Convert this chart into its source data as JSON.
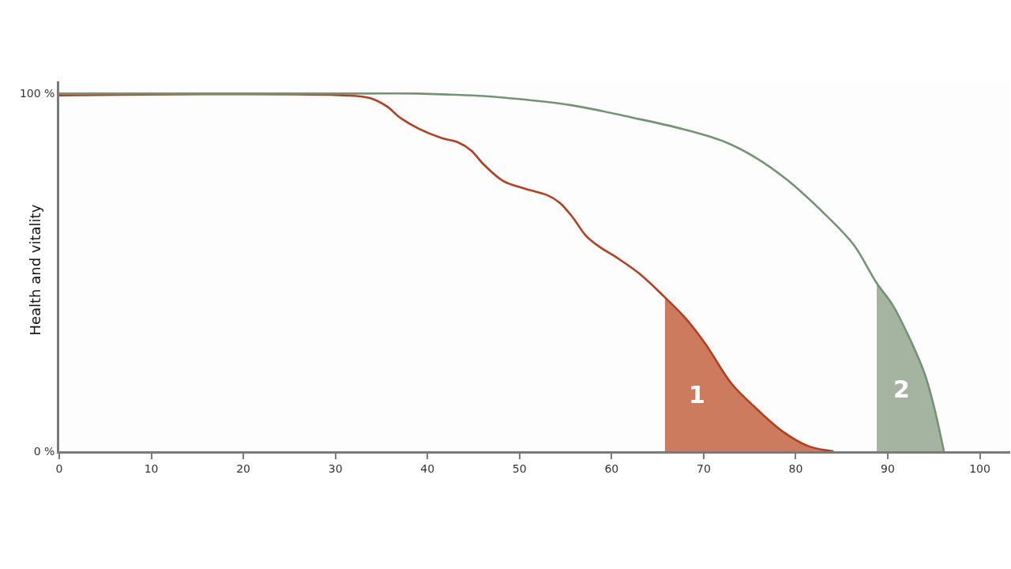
{
  "chart_data": {
    "type": "line",
    "ylabel": "Health and vitality",
    "xlim": [
      0,
      103.3
    ],
    "xticks": [
      0,
      10,
      20,
      30,
      40,
      50,
      60,
      70,
      80,
      90,
      100
    ],
    "ylim": [
      0,
      103.4
    ],
    "yticks": [
      {
        "value": 0,
        "label": "0 %"
      },
      {
        "value": 100,
        "label": "100 %"
      }
    ],
    "series": [
      {
        "type": "area",
        "color": "#cc7b5f",
        "x": [
          65.8,
          68.1,
          70.2,
          73.0,
          75.7,
          78.6,
          81.4,
          83.5,
          84.1
        ],
        "values": [
          43,
          37,
          30,
          19,
          12,
          5.5,
          1.4,
          0.2,
          0
        ]
      },
      {
        "type": "area",
        "color": "#a5b4a0",
        "x": [
          88.8,
          90.5,
          92.2,
          94.0,
          95.0,
          96.1
        ],
        "values": [
          47,
          41,
          32.5,
          21.7,
          12.7,
          0
        ]
      },
      {
        "color": "#b93d1c",
        "x": [
          0,
          31,
          33.8,
          35.6,
          37.0,
          39.1,
          41.5,
          43.3,
          44.7,
          46.1,
          48.2,
          50.6,
          53.0,
          54.4,
          55.8,
          57.2,
          58.6,
          60.7,
          63.1,
          65.8,
          68.1,
          70.2,
          73.0,
          75.7,
          78.6,
          81.4,
          83.5,
          84.1
        ],
        "values": [
          99.5,
          99.5,
          98.7,
          96.4,
          93.3,
          90.1,
          87.6,
          86.4,
          84.2,
          80.2,
          75.6,
          73.4,
          71.6,
          69.4,
          65.3,
          60.3,
          57.3,
          53.9,
          49.5,
          43,
          37,
          30,
          19,
          12,
          5.5,
          1.4,
          0.2,
          0
        ]
      },
      {
        "color": "#739474",
        "x": [
          0,
          32,
          39,
          42.5,
          46.1,
          48.5,
          55.5,
          62.4,
          67.7,
          72.3,
          75.7,
          79.2,
          83.4,
          86.3,
          88.8,
          90.5,
          92.2,
          94.0,
          95.0,
          96.1
        ],
        "values": [
          100,
          100,
          100,
          99.7,
          99.3,
          98.8,
          96.8,
          93.2,
          90.1,
          86.5,
          82,
          75.6,
          65.7,
          57.7,
          47,
          41,
          32.5,
          21.7,
          12.7,
          0
        ]
      }
    ],
    "annotations": [
      "1",
      "2"
    ]
  }
}
